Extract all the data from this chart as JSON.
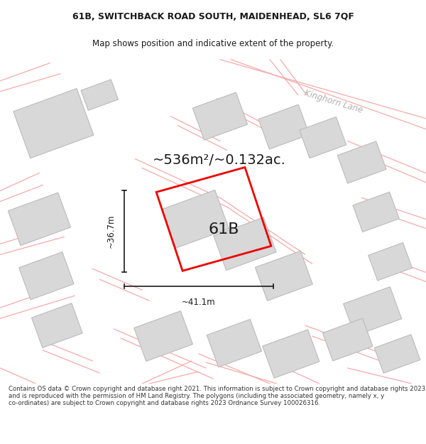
{
  "title_line1": "61B, SWITCHBACK ROAD SOUTH, MAIDENHEAD, SL6 7QF",
  "title_line2": "Map shows position and indicative extent of the property.",
  "area_label": "~536m²/~0.132ac.",
  "width_label": "~41.1m",
  "height_label": "~36.7m",
  "plot_label": "61B",
  "road_label": "Kinghorn Lane",
  "footer_text": "Contains OS data © Crown copyright and database right 2021. This information is subject to Crown copyright and database rights 2023 and is reproduced with the permission of HM Land Registry. The polygons (including the associated geometry, namely x, y co-ordinates) are subject to Crown copyright and database rights 2023 Ordnance Survey 100026316.",
  "bg_color": "#ffffff",
  "map_bg": "#ffffff",
  "building_color": "#d8d8d8",
  "building_edge": "#bbbbbb",
  "road_color": "#f5aaaa",
  "plot_color": "#ee0000",
  "dim_color": "#1a1a1a",
  "road_label_color": "#b0b0b0",
  "title_color": "#1a1a1a",
  "footer_color": "#333333",
  "title_fontsize": 9.0,
  "subtitle_fontsize": 8.5,
  "area_fontsize": 14,
  "dim_fontsize": 8.5,
  "label_fontsize": 16,
  "road_label_fontsize": 8.5,
  "footer_fontsize": 6.2
}
